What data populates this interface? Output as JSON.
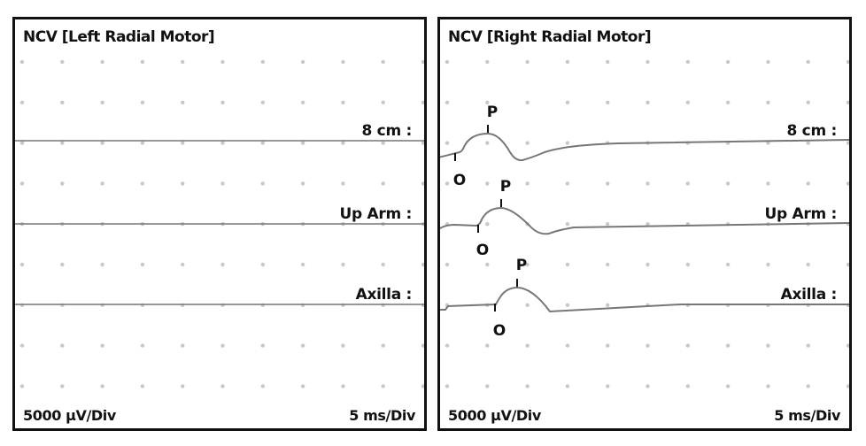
{
  "panels": [
    {
      "title": "NCV [Left Radial Motor]",
      "traces": [
        "8 cm :",
        "Up Arm :",
        "Axilla :"
      ],
      "sensitivity": "5000 µV/Div",
      "sweep": "5 ms/Div"
    },
    {
      "title": "NCV [Right Radial Motor]",
      "traces": [
        "8 cm :",
        "Up Arm :",
        "Axilla :"
      ],
      "sensitivity": "5000 µV/Div",
      "sweep": "5 ms/Div",
      "markers": {
        "onset": "O",
        "peak": "P"
      }
    }
  ],
  "colors": {
    "trace": "#777777",
    "grid_dot": "#c8c8c8",
    "border": "#111111"
  }
}
